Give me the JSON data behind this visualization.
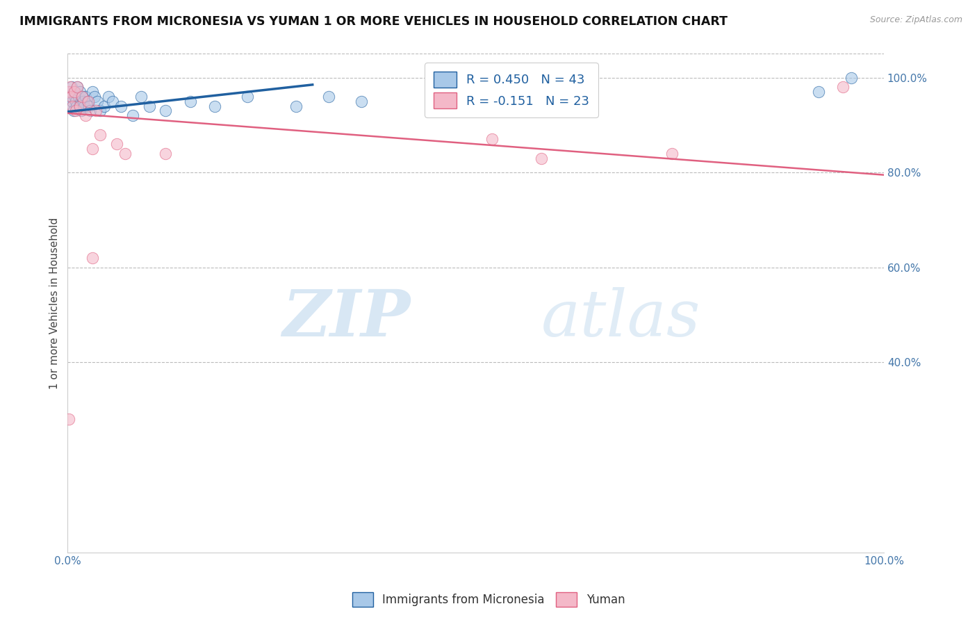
{
  "title": "IMMIGRANTS FROM MICRONESIA VS YUMAN 1 OR MORE VEHICLES IN HOUSEHOLD CORRELATION CHART",
  "source": "Source: ZipAtlas.com",
  "ylabel": "1 or more Vehicles in Household",
  "xlim": [
    0.0,
    1.0
  ],
  "ylim": [
    0.0,
    1.05
  ],
  "ytick_positions": [
    0.4,
    0.6,
    0.8,
    1.0
  ],
  "ytick_labels": [
    "40.0%",
    "60.0%",
    "80.0%",
    "100.0%"
  ],
  "xtick_positions": [
    0.0,
    1.0
  ],
  "xtick_labels": [
    "0.0%",
    "100.0%"
  ],
  "legend_entry1": "R = 0.450   N = 43",
  "legend_entry2": "R = -0.151   N = 23",
  "legend_label1": "Immigrants from Micronesia",
  "legend_label2": "Yuman",
  "color_blue": "#a8c8e8",
  "color_pink": "#f4b8c8",
  "line_color_blue": "#2060a0",
  "line_color_pink": "#e06080",
  "blue_x": [
    0.002,
    0.003,
    0.004,
    0.005,
    0.006,
    0.007,
    0.008,
    0.009,
    0.01,
    0.011,
    0.012,
    0.013,
    0.014,
    0.015,
    0.016,
    0.017,
    0.018,
    0.019,
    0.02,
    0.022,
    0.024,
    0.026,
    0.028,
    0.03,
    0.033,
    0.036,
    0.04,
    0.045,
    0.05,
    0.055,
    0.065,
    0.08,
    0.09,
    0.1,
    0.12,
    0.15,
    0.18,
    0.22,
    0.28,
    0.32,
    0.36,
    0.92,
    0.96
  ],
  "blue_y": [
    0.96,
    0.94,
    0.97,
    0.98,
    0.95,
    0.93,
    0.97,
    0.96,
    0.95,
    0.94,
    0.98,
    0.96,
    0.94,
    0.97,
    0.95,
    0.93,
    0.96,
    0.95,
    0.94,
    0.96,
    0.95,
    0.94,
    0.93,
    0.97,
    0.96,
    0.95,
    0.93,
    0.94,
    0.96,
    0.95,
    0.94,
    0.92,
    0.96,
    0.94,
    0.93,
    0.95,
    0.94,
    0.96,
    0.94,
    0.96,
    0.95,
    0.97,
    1.0
  ],
  "pink_x": [
    0.001,
    0.003,
    0.005,
    0.006,
    0.008,
    0.01,
    0.012,
    0.015,
    0.018,
    0.022,
    0.025,
    0.03,
    0.035,
    0.04,
    0.06,
    0.07,
    0.12,
    0.52,
    0.58,
    0.74,
    0.03,
    0.95,
    0.001
  ],
  "pink_y": [
    0.97,
    0.98,
    0.96,
    0.94,
    0.97,
    0.93,
    0.98,
    0.94,
    0.96,
    0.92,
    0.95,
    0.85,
    0.93,
    0.88,
    0.86,
    0.84,
    0.84,
    0.87,
    0.83,
    0.84,
    0.62,
    0.98,
    0.28
  ],
  "blue_trendline_x": [
    0.0,
    0.3
  ],
  "blue_trendline_y": [
    0.928,
    0.985
  ],
  "pink_trendline_x": [
    0.0,
    1.0
  ],
  "pink_trendline_y": [
    0.925,
    0.795
  ]
}
